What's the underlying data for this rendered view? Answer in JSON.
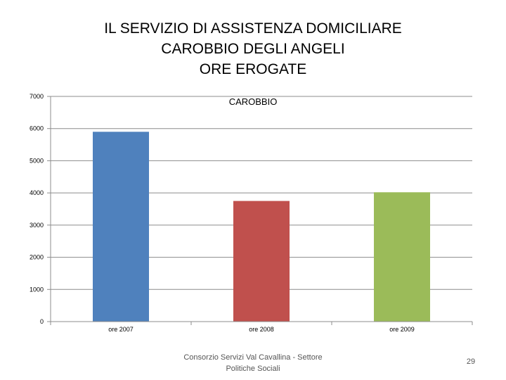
{
  "slide": {
    "title_lines": [
      "IL SERVIZIO DI ASSISTENZA DOMICILIARE",
      "CAROBBIO DEGLI ANGELI",
      "ORE EROGATE"
    ],
    "footer": "Consorzio Servizi Val Cavallina - Settore Politiche Sociali",
    "page_number": "29"
  },
  "chart_data": {
    "type": "bar",
    "title": "CAROBBIO",
    "categories": [
      "ore 2007",
      "ore 2008",
      "ore 2009"
    ],
    "values": [
      5900,
      3750,
      4020
    ],
    "colors": [
      "#4F81BD",
      "#C0504D",
      "#9BBB59"
    ],
    "ylim": [
      0,
      7000
    ],
    "yticks": [
      0,
      1000,
      2000,
      3000,
      4000,
      5000,
      6000,
      7000
    ],
    "grid": true,
    "legend": false
  }
}
